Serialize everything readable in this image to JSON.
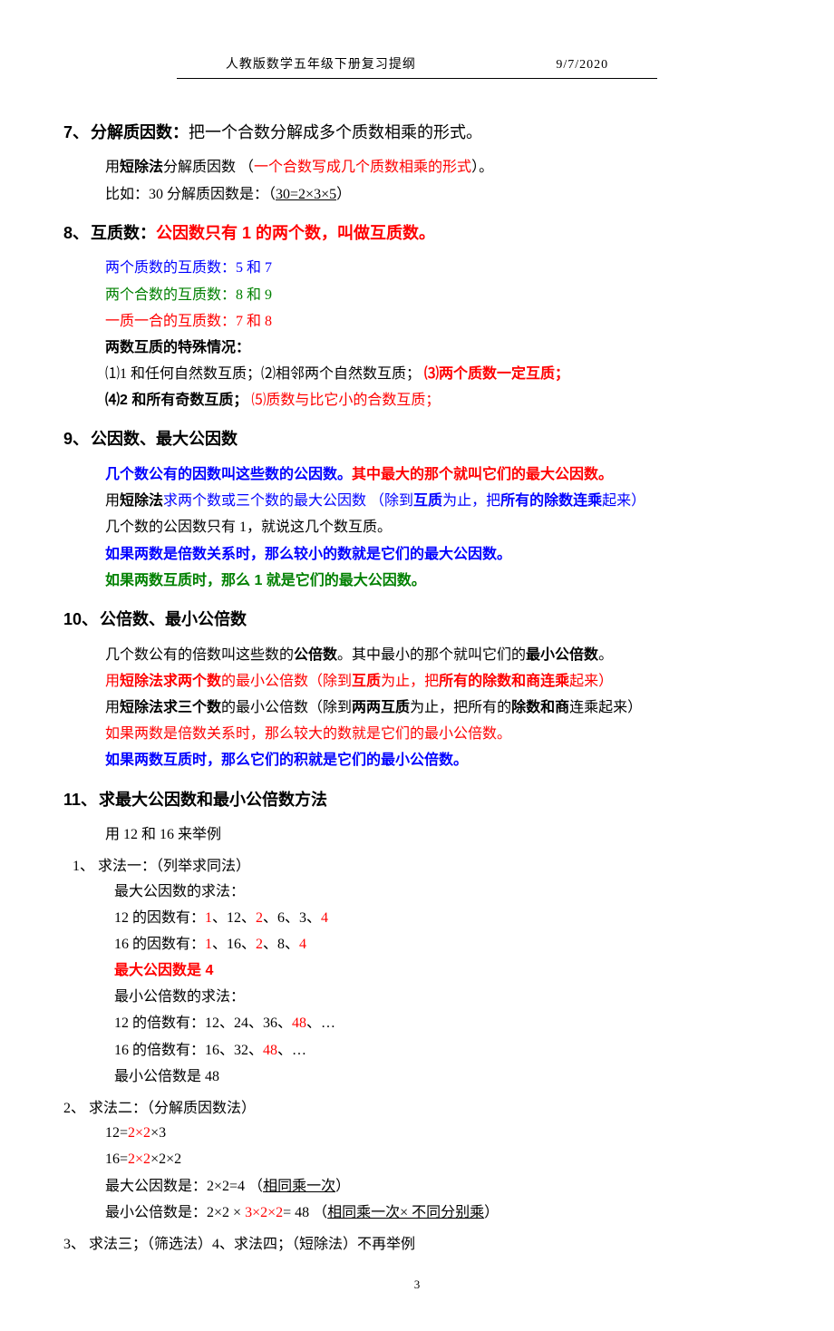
{
  "header": {
    "title": "人教版数学五年级下册复习提纲",
    "date": "9/7/2020"
  },
  "sections": {
    "s7": {
      "heading_num": "7、",
      "heading_title": "分解质因数：",
      "heading_rest": "把一个合数分解成多个质数相乘的形式。",
      "line1_a": "用",
      "line1_b": "短除法",
      "line1_c": "分解质因数   （",
      "line1_d": "一个合数写成几个质数相乘的形式",
      "line1_e": "）。",
      "line2_a": "比如：30 分解质因数是：（",
      "line2_b": "30=2×3×5",
      "line2_c": "）"
    },
    "s8": {
      "heading_num": "8、",
      "heading_title": "互质数：",
      "heading_red": "公因数只有 1 的两个数，叫做互质数。",
      "line1": "两个质数的互质数：5 和 7",
      "line2": "两个合数的互质数：8 和 9",
      "line3": "一质一合的互质数：7 和 8",
      "line4": "两数互质的特殊情况：",
      "line5_a": "⑴1 和任何自然数互质；⑵相邻两个自然数互质；  ",
      "line5_b": "⑶两个质数一定互质；",
      "line6_a": "⑷2 和所有奇数互质；",
      "line6_b": "   ⑸质数与比它小的合数互质；"
    },
    "s9": {
      "heading_num": "9、",
      "heading_title": "公因数、最大公因数",
      "line1_a": "几个数公有的因数叫这些数的公因数。",
      "line1_b": "其中最大的那个就叫它们的最大公因数。",
      "line2_a": "用",
      "line2_b": "短除法",
      "line2_c": "求两个数或三个数的最大公因数   （除到",
      "line2_d": "互质",
      "line2_e": "为止，把",
      "line2_f": "所有的除数连乘",
      "line2_g": "起来）",
      "line3": "几个数的公因数只有 1，就说这几个数互质。",
      "line4": "如果两数是倍数关系时，那么较小的数就是它们的最大公因数。",
      "line5": "如果两数互质时，那么 1 就是它们的最大公因数。"
    },
    "s10": {
      "heading_num": "10、",
      "heading_title": "公倍数、最小公倍数",
      "line1_a": "几个数公有的倍数叫这些数的",
      "line1_b": "公倍数",
      "line1_c": "。其中最小的那个就叫它们的",
      "line1_d": "最小公倍数",
      "line1_e": "。",
      "line2_a": "用",
      "line2_b": "短除法求两个数",
      "line2_c": "的最小公倍数（除到",
      "line2_d": "互质",
      "line2_e": "为止，把",
      "line2_f": "所有的除数和商连乘",
      "line2_g": "起来）",
      "line3_a": "用",
      "line3_b": "短除法求三个数",
      "line3_c": "的最小公倍数（除到",
      "line3_d": "两两互质",
      "line3_e": "为止，把所有的",
      "line3_f": "除数和商",
      "line3_g": "连乘起来）",
      "line4": "如果两数是倍数关系时，那么较大的数就是它们的最小公倍数。",
      "line5": "如果两数互质时，那么它们的积就是它们的最小公倍数。"
    },
    "s11": {
      "heading_num": "11、",
      "heading_title": "求最大公因数和最小公倍数方法",
      "example": "用 12 和 16 来举例",
      "m1_head": "1、 求法一：（列举求同法）",
      "m1_l1": "最大公因数的求法：",
      "m1_l2_a": "12 的因数有：",
      "m1_l2_b": "1",
      "m1_l2_c": "、12、",
      "m1_l2_d": "2",
      "m1_l2_e": "、6、3、",
      "m1_l2_f": "4",
      "m1_l3_a": "16 的因数有：",
      "m1_l3_b": "1",
      "m1_l3_c": "、16、",
      "m1_l3_d": "2",
      "m1_l3_e": "、8、",
      "m1_l3_f": "4",
      "m1_l4": "最大公因数是 4",
      "m1_l5": "最小公倍数的求法：",
      "m1_l6_a": "12 的倍数有：12、24、36、",
      "m1_l6_b": "48",
      "m1_l6_c": "、…",
      "m1_l7_a": "16 的倍数有：16、32、",
      "m1_l7_b": "48",
      "m1_l7_c": "、…",
      "m1_l8": "最小公倍数是 48",
      "m2_head": "2、 求法二：（分解质因数法）",
      "m2_l1_a": "12=",
      "m2_l1_b": "2×2",
      "m2_l1_c": "×3",
      "m2_l2_a": "16=",
      "m2_l2_b": "2×2",
      "m2_l2_c": "×2×2",
      "m2_l3_a": "最大公因数是：2×2=4        （",
      "m2_l3_b": "相同乘一次",
      "m2_l3_c": "）",
      "m2_l4_a": "最小公倍数是：2×2   × ",
      "m2_l4_b": "3×2×2",
      "m2_l4_c": "= 48  （",
      "m2_l4_d": "相同乘一次×  不同分别乘",
      "m2_l4_e": "）",
      "m3": "3、 求法三；（筛选法）4、求法四；（短除法）不再举例"
    }
  },
  "footer": {
    "page_num": "3"
  }
}
